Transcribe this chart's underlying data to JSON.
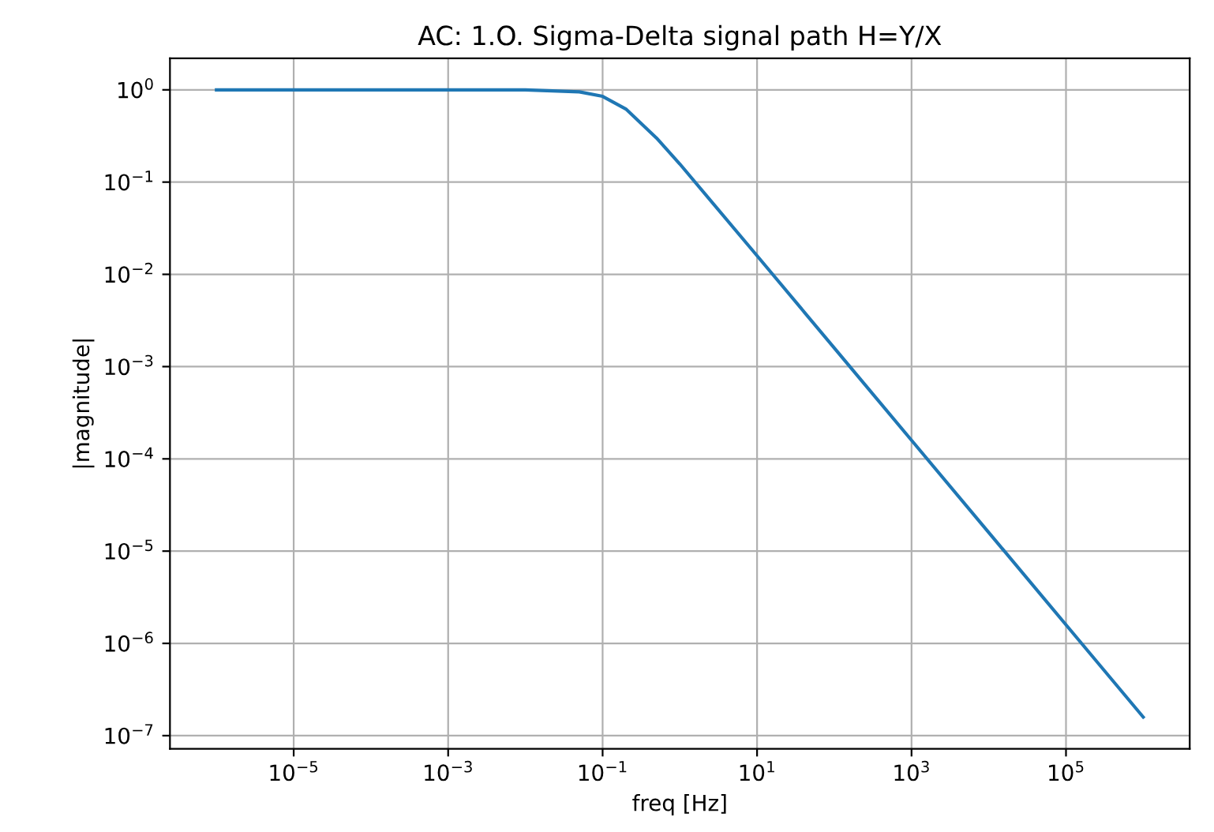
{
  "chart_data": {
    "type": "line",
    "title": "AC: 1.O. Sigma-Delta signal path H=Y/X",
    "xlabel": "freq [Hz]",
    "ylabel": "|magnitude|",
    "log": "xy",
    "grid": true,
    "x": [
      1e-06,
      0.0001,
      0.01,
      0.05,
      0.1,
      0.2,
      0.5,
      1,
      10,
      100,
      1000,
      10000,
      100000,
      1000000
    ],
    "series": [
      {
        "color": "#1f77b4",
        "values": [
          1,
          1,
          0.999,
          0.95,
          0.85,
          0.62,
          0.3,
          0.157,
          0.0159,
          0.00159,
          0.000159,
          1.59e-05,
          1.59e-06,
          1.59e-07
        ]
      }
    ],
    "xlim": [
      2.5e-07,
      4000000.0
    ],
    "ylim": [
      7.2e-08,
      2.2
    ],
    "xticks": [
      {
        "value": 1e-05,
        "label": "10$^{−5}$"
      },
      {
        "value": 0.001,
        "label": "10$^{−3}$"
      },
      {
        "value": 0.1,
        "label": "10$^{−1}$"
      },
      {
        "value": 10,
        "label": "10$^{1}$"
      },
      {
        "value": 1000,
        "label": "10$^{3}$"
      },
      {
        "value": 100000,
        "label": "10$^{5}$"
      }
    ],
    "yticks": [
      {
        "value": 1e-07,
        "label": "10$^{−7}$"
      },
      {
        "value": 1e-06,
        "label": "10$^{−6}$"
      },
      {
        "value": 1e-05,
        "label": "10$^{−5}$"
      },
      {
        "value": 0.0001,
        "label": "10$^{−4}$"
      },
      {
        "value": 0.001,
        "label": "10$^{−3}$"
      },
      {
        "value": 0.01,
        "label": "10$^{−2}$"
      },
      {
        "value": 0.1,
        "label": "10$^{−1}$"
      },
      {
        "value": 1,
        "label": "10$^{0}$"
      }
    ]
  }
}
